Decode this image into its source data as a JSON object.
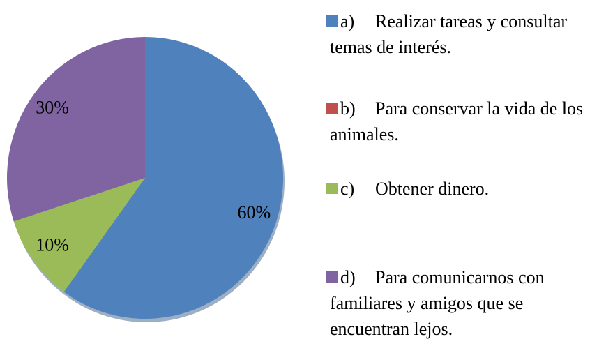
{
  "chart_data": {
    "type": "pie",
    "categories": [
      "a)\tRealizar tareas y consultar temas de interés.",
      "b)\tPara conservar la vida de los animales.",
      "c)\tObtener dinero.",
      "d)\tPara comunicarnos con familiares y amigos que se encuentran lejos."
    ],
    "values": [
      60,
      0,
      10,
      30
    ],
    "value_labels": [
      "60%",
      null,
      "10%",
      "30%"
    ],
    "colors": [
      "#4f81bd",
      "#c0504d",
      "#9bbb59",
      "#8064a2"
    ],
    "legend": "right"
  }
}
